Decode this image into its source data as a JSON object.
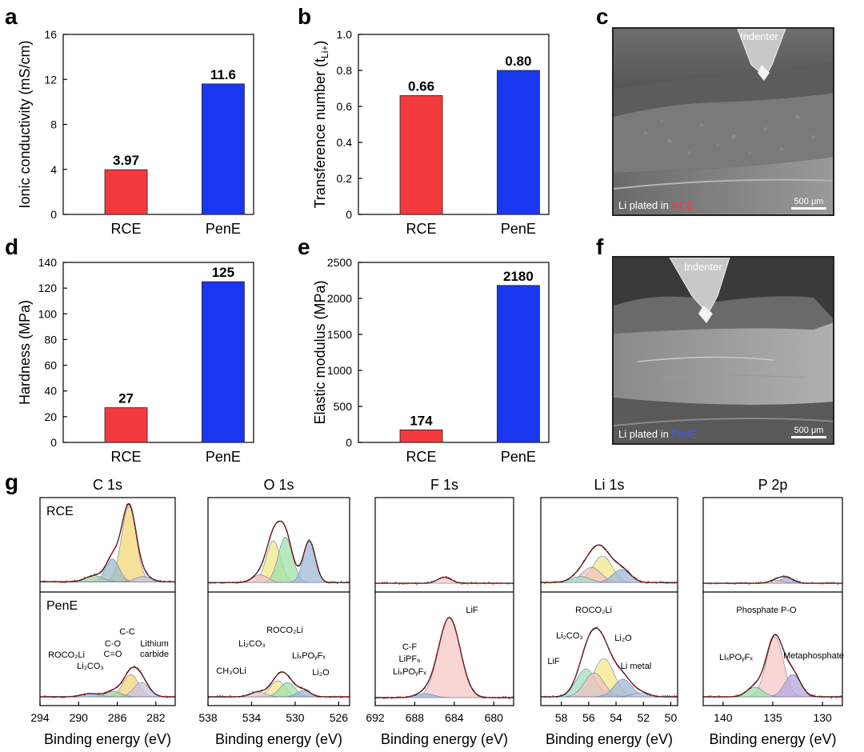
{
  "panel_labels": {
    "a": "a",
    "b": "b",
    "c": "c",
    "d": "d",
    "e": "e",
    "f": "f",
    "g": "g"
  },
  "colors": {
    "rce": "#f23a3d",
    "pene": "#1a37f0"
  },
  "chart_data": [
    {
      "id": "a",
      "type": "bar",
      "categories": [
        "RCE",
        "PenE"
      ],
      "values": [
        3.97,
        11.6
      ],
      "value_labels": [
        "3.97",
        "11.6"
      ],
      "ylabel": "Ionic conductivity (mS/cm)",
      "ylim": [
        0,
        16
      ],
      "yticks": [
        0,
        4,
        8,
        12,
        16
      ],
      "ytick_labels": [
        "0",
        "4",
        "8",
        "12",
        "16"
      ]
    },
    {
      "id": "b",
      "type": "bar",
      "categories": [
        "RCE",
        "PenE"
      ],
      "values": [
        0.66,
        0.8
      ],
      "value_labels": [
        "0.66",
        "0.80"
      ],
      "ylabel": "Transference number (t",
      "ylabel_sub": "Li+",
      "ylabel_end": ")",
      "ylim": [
        0,
        1.0
      ],
      "yticks": [
        0,
        0.2,
        0.4,
        0.6,
        0.8,
        1.0
      ],
      "ytick_labels": [
        "0",
        "0.2",
        "0.4",
        "0.6",
        "0.8",
        "1.0"
      ]
    },
    {
      "id": "d",
      "type": "bar",
      "categories": [
        "RCE",
        "PenE"
      ],
      "values": [
        27,
        125
      ],
      "value_labels": [
        "27",
        "125"
      ],
      "ylabel": "Hardness (MPa)",
      "ylim": [
        0,
        140
      ],
      "yticks": [
        0,
        20,
        40,
        60,
        80,
        100,
        120,
        140
      ],
      "ytick_labels": [
        "0",
        "20",
        "40",
        "60",
        "80",
        "100",
        "120",
        "140"
      ]
    },
    {
      "id": "e",
      "type": "bar",
      "categories": [
        "RCE",
        "PenE"
      ],
      "values": [
        174,
        2180
      ],
      "value_labels": [
        "174",
        "2180"
      ],
      "ylabel": "Elastic modulus (MPa)",
      "ylim": [
        0,
        2500
      ],
      "yticks": [
        0,
        500,
        1000,
        1500,
        2000,
        2500
      ],
      "ytick_labels": [
        "0",
        "500",
        "1000",
        "1500",
        "2000",
        "2500"
      ]
    },
    {
      "id": "g1",
      "type": "line",
      "title": "C 1s",
      "xlabel": "Binding energy (eV)",
      "xlim": [
        294,
        280
      ],
      "xticks": [
        294,
        290,
        286,
        282
      ],
      "xtick_labels": [
        "294",
        "290",
        "286",
        "282"
      ],
      "top": {
        "label": "RCE",
        "peaks": [
          {
            "c": 284.8,
            "a": 1.0,
            "w": 0.75,
            "color": "#f3d77a"
          },
          {
            "c": 286.5,
            "a": 0.3,
            "w": 0.7,
            "color": "#9fb8c9"
          },
          {
            "c": 288.4,
            "a": 0.08,
            "w": 0.9,
            "color": "#a9cfa2"
          },
          {
            "c": 283.3,
            "a": 0.07,
            "w": 0.8,
            "color": "#c9c2e3"
          }
        ],
        "baseline": 0.05
      },
      "bottom": {
        "label": "PenE",
        "peaks": [
          {
            "c": 284.6,
            "a": 0.28,
            "w": 0.8,
            "color": "#f3d77a"
          },
          {
            "c": 283.5,
            "a": 0.18,
            "w": 0.8,
            "color": "#c9c2e3"
          },
          {
            "c": 286.4,
            "a": 0.07,
            "w": 0.8,
            "color": "#a9cfa2"
          },
          {
            "c": 288.8,
            "a": 0.04,
            "w": 0.9,
            "color": "#9fb8c9"
          }
        ],
        "baseline": 0.03
      },
      "annotations": [
        "ROCO₂Li",
        "Li₂CO₃",
        "C-O",
        "C=O",
        "C-C",
        "Lithium",
        "carbide"
      ]
    },
    {
      "id": "g2",
      "type": "line",
      "title": "O 1s",
      "xlabel": "Binding energy (eV)",
      "xlim": [
        538,
        525
      ],
      "xticks": [
        538,
        534,
        530,
        526
      ],
      "xtick_labels": [
        "538",
        "534",
        "530",
        "526"
      ],
      "top": {
        "label": "",
        "peaks": [
          {
            "c": 532.0,
            "a": 0.55,
            "w": 0.65,
            "color": "#f3e78a"
          },
          {
            "c": 530.9,
            "a": 0.6,
            "w": 0.65,
            "color": "#9fe0a8"
          },
          {
            "c": 528.7,
            "a": 0.55,
            "w": 0.55,
            "color": "#9fb8d8"
          },
          {
            "c": 533.2,
            "a": 0.1,
            "w": 0.7,
            "color": "#f0c2c2"
          }
        ],
        "baseline": 0.04
      },
      "bottom": {
        "label": "",
        "peaks": [
          {
            "c": 531.6,
            "a": 0.2,
            "w": 0.7,
            "color": "#f3e78a"
          },
          {
            "c": 530.7,
            "a": 0.18,
            "w": 0.7,
            "color": "#9fe0a8"
          },
          {
            "c": 529.2,
            "a": 0.08,
            "w": 0.6,
            "color": "#9fb8d8"
          },
          {
            "c": 533.4,
            "a": 0.06,
            "w": 0.7,
            "color": "#f0c2c2"
          }
        ],
        "baseline": 0.03
      },
      "annotations": [
        "Li₂CO₃",
        "ROCO₂Li",
        "CH₃OLi",
        "LiₓPOᵧFₓ",
        "Li₂O"
      ]
    },
    {
      "id": "g3",
      "type": "line",
      "title": "F 1s",
      "xlabel": "Binding energy (eV)",
      "xlim": [
        692,
        678
      ],
      "xticks": [
        692,
        688,
        684,
        680
      ],
      "xtick_labels": [
        "692",
        "688",
        "684",
        "680"
      ],
      "top": {
        "label": "",
        "peaks": [
          {
            "c": 685.0,
            "a": 0.08,
            "w": 0.7,
            "color": "#f7c7c7"
          }
        ],
        "baseline": 0.03
      },
      "bottom": {
        "label": "",
        "peaks": [
          {
            "c": 684.5,
            "a": 1.0,
            "w": 1.1,
            "color": "#f7c7c7"
          },
          {
            "c": 687.0,
            "a": 0.05,
            "w": 0.9,
            "color": "#9fb8d8"
          }
        ],
        "baseline": 0.02
      },
      "annotations": [
        "LiF",
        "C-F",
        "LiPF₆",
        "LiₓPOᵧFₓ"
      ]
    },
    {
      "id": "g4",
      "type": "line",
      "title": "Li 1s",
      "xlabel": "Binding energy (eV)",
      "xlim": [
        59.5,
        49.5
      ],
      "xticks": [
        58,
        56,
        54,
        52,
        50
      ],
      "xtick_labels": [
        "58",
        "56",
        "54",
        "52",
        "50"
      ],
      "top": {
        "label": "",
        "peaks": [
          {
            "c": 55.0,
            "a": 0.35,
            "w": 0.7,
            "color": "#f3e78a"
          },
          {
            "c": 55.8,
            "a": 0.2,
            "w": 0.7,
            "color": "#f0c2c2"
          },
          {
            "c": 53.6,
            "a": 0.17,
            "w": 0.65,
            "color": "#9fb8d8"
          },
          {
            "c": 56.6,
            "a": 0.08,
            "w": 0.7,
            "color": "#9fe0c0"
          }
        ],
        "baseline": 0.04
      },
      "bottom": {
        "label": "",
        "peaks": [
          {
            "c": 54.9,
            "a": 0.48,
            "w": 0.75,
            "color": "#f3e78a"
          },
          {
            "c": 56.2,
            "a": 0.35,
            "w": 0.7,
            "color": "#9fe0c0"
          },
          {
            "c": 55.6,
            "a": 0.3,
            "w": 0.7,
            "color": "#f0c2c2"
          },
          {
            "c": 53.5,
            "a": 0.22,
            "w": 0.65,
            "color": "#9fb8d8"
          },
          {
            "c": 52.2,
            "a": 0.05,
            "w": 0.6,
            "color": "#c9c2e3"
          }
        ],
        "baseline": 0.03
      },
      "annotations": [
        "ROCO₂Li",
        "Li₂CO₃",
        "LiF",
        "Li₂O",
        "Li metal"
      ]
    },
    {
      "id": "g5",
      "type": "line",
      "title": "P 2p",
      "xlabel": "Binding energy (eV)",
      "xlim": [
        142,
        128
      ],
      "xticks": [
        140,
        135,
        130
      ],
      "xtick_labels": [
        "140",
        "135",
        "130"
      ],
      "top": {
        "label": "",
        "peaks": [
          {
            "c": 133.6,
            "a": 0.07,
            "w": 0.7,
            "color": "#b5a6df"
          },
          {
            "c": 134.6,
            "a": 0.04,
            "w": 0.7,
            "color": "#f7c7c7"
          }
        ],
        "baseline": 0.03
      },
      "bottom": {
        "label": "",
        "peaks": [
          {
            "c": 134.8,
            "a": 0.75,
            "w": 0.85,
            "color": "#f7c7c7"
          },
          {
            "c": 133.0,
            "a": 0.28,
            "w": 0.8,
            "color": "#b5a6df"
          },
          {
            "c": 136.8,
            "a": 0.12,
            "w": 0.8,
            "color": "#9fe0a8"
          }
        ],
        "baseline": 0.03
      },
      "annotations": [
        "Phosphate P-O",
        "LiₓPOᵧFₓ",
        "Metaphosphate"
      ]
    }
  ],
  "sem_images": {
    "c": {
      "indenter_label": "Indenter",
      "caption_prefix": "Li plated in ",
      "caption_highlight": "RCE",
      "scale_label": "500 μm"
    },
    "f": {
      "indenter_label": "Indenter",
      "caption_prefix": "Li plated in ",
      "caption_highlight": "PenE",
      "scale_label": "500 μm"
    }
  }
}
